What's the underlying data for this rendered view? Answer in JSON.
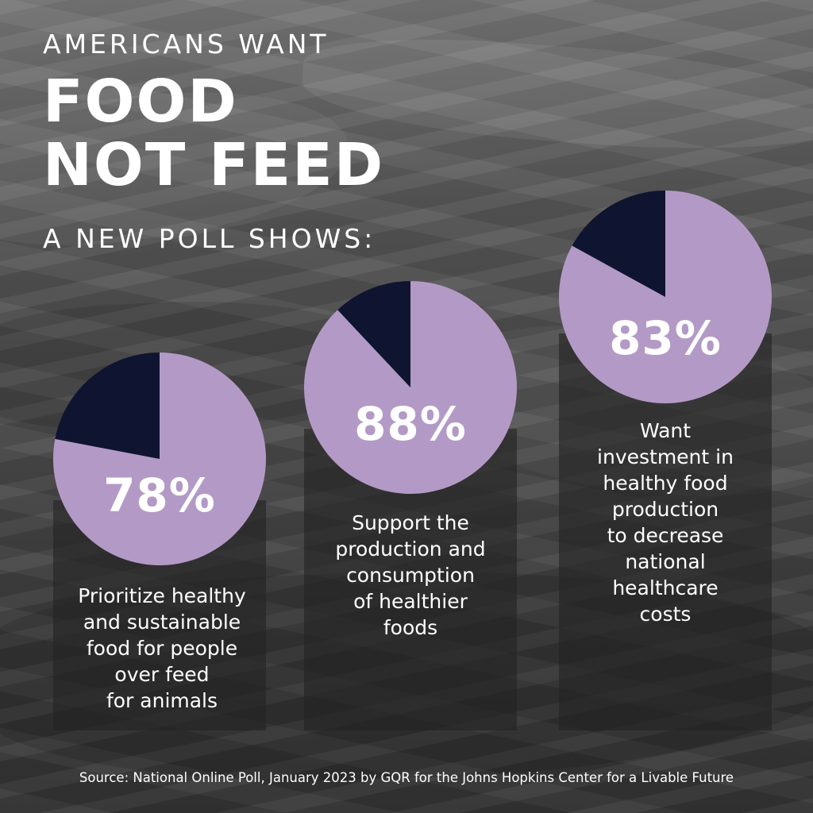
{
  "header": {
    "kicker": "AMERICANS WANT",
    "headline_line1": "FOOD",
    "headline_line2": "NOT FEED",
    "subkicker": "A NEW POLL SHOWS:"
  },
  "colors": {
    "pie_fill": "#b39ac6",
    "pie_remainder": "#0f1530",
    "text": "#ffffff",
    "panel": "#232323"
  },
  "chart_data": [
    {
      "type": "pie",
      "values": [
        78,
        22
      ],
      "label": "78%",
      "description": [
        "Prioritize healthy",
        "and sustainable",
        "food for people",
        "over feed",
        "for animals"
      ]
    },
    {
      "type": "pie",
      "values": [
        88,
        12
      ],
      "label": "88%",
      "description": [
        "Support the",
        "production and",
        "consumption",
        "of healthier",
        "foods"
      ]
    },
    {
      "type": "pie",
      "values": [
        83,
        17
      ],
      "label": "83%",
      "description": [
        "Want",
        "investment in",
        "healthy food",
        "production",
        "to decrease",
        "national",
        "healthcare",
        "costs"
      ]
    }
  ],
  "footer": {
    "source": "Source: National Online Poll, January 2023 by GQR for the Johns Hopkins Center for a Livable Future"
  }
}
